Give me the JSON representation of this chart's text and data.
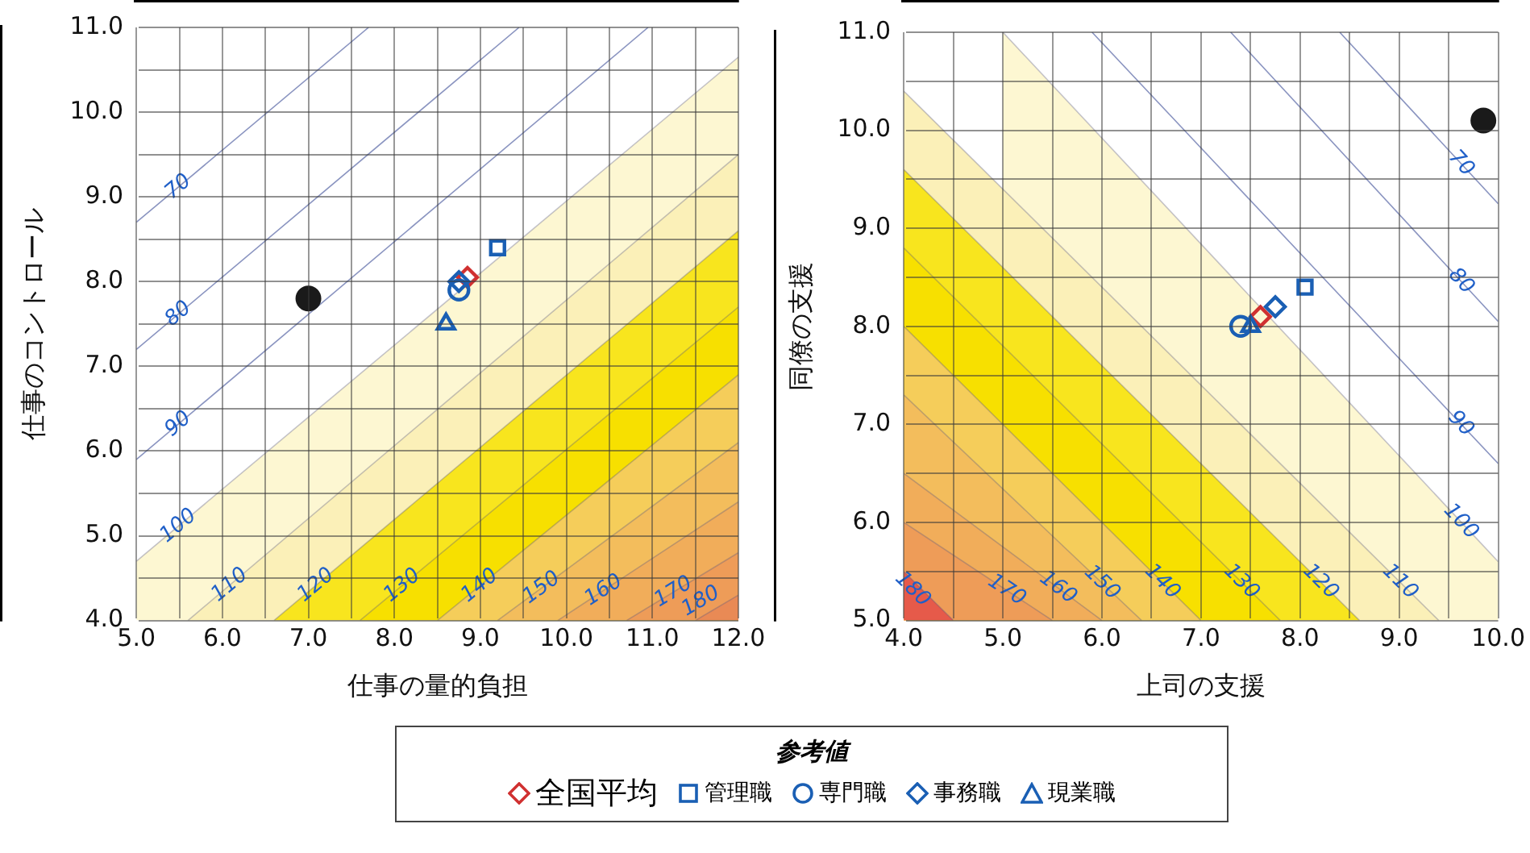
{
  "chart_data": [
    {
      "type": "scatter",
      "xlabel": "仕事の量的負担",
      "ylabel": "仕事のコントロール",
      "xlim": [
        5,
        12
      ],
      "ylim": [
        4,
        11
      ],
      "xticks": [
        {
          "value": 5,
          "label": "5.0"
        },
        {
          "value": 5.5,
          "label": null
        },
        {
          "value": 6,
          "label": "6.0"
        },
        {
          "value": 6.5,
          "label": null
        },
        {
          "value": 7,
          "label": "7.0"
        },
        {
          "value": 7.5,
          "label": null
        },
        {
          "value": 8,
          "label": "8.0"
        },
        {
          "value": 8.5,
          "label": null
        },
        {
          "value": 9,
          "label": "9.0"
        },
        {
          "value": 9.5,
          "label": null
        },
        {
          "value": 10,
          "label": "10.0"
        },
        {
          "value": 10.5,
          "label": null
        },
        {
          "value": 11,
          "label": "11.0"
        },
        {
          "value": 11.5,
          "label": null
        },
        {
          "value": 12,
          "label": "12.0"
        }
      ],
      "yticks": [
        {
          "value": 4,
          "label": "4.0"
        },
        {
          "value": 4.5,
          "label": null
        },
        {
          "value": 5,
          "label": "5.0"
        },
        {
          "value": 5.5,
          "label": null
        },
        {
          "value": 6,
          "label": "6.0"
        },
        {
          "value": 6.5,
          "label": null
        },
        {
          "value": 7,
          "label": "7.0"
        },
        {
          "value": 7.5,
          "label": null
        },
        {
          "value": 8,
          "label": "8.0"
        },
        {
          "value": 8.5,
          "label": null
        },
        {
          "value": 9,
          "label": "9.0"
        },
        {
          "value": 9.5,
          "label": null
        },
        {
          "value": 10,
          "label": "10.0"
        },
        {
          "value": 10.5,
          "label": null
        },
        {
          "value": 11,
          "label": "11.0"
        }
      ],
      "grid": true,
      "legend": "bottom",
      "legend_title": "参考値",
      "series": [
        {
          "type": "line",
          "name": "70",
          "color": "#8a94c0",
          "x": [
            5,
            7.7
          ],
          "values": [
            8.7,
            11
          ]
        },
        {
          "type": "line",
          "name": "80",
          "color": "#8a94c0",
          "x": [
            5,
            9.45
          ],
          "values": [
            7.2,
            11
          ]
        },
        {
          "type": "line",
          "name": "90",
          "color": "#8a94c0",
          "x": [
            5,
            10.95
          ],
          "values": [
            5.9,
            11
          ]
        },
        {
          "type": "area",
          "name": "100",
          "color": "#fdf7d2",
          "x": [
            5,
            12
          ],
          "values": [
            4.7,
            10.65
          ]
        },
        {
          "type": "area",
          "name": "110",
          "color": "#fbf0b8",
          "x": [
            5.6,
            12
          ],
          "values": [
            4,
            9.5
          ]
        },
        {
          "type": "area",
          "name": "120",
          "color": "#f8e51e",
          "x": [
            6.6,
            12
          ],
          "values": [
            4,
            8.6
          ]
        },
        {
          "type": "area",
          "name": "130",
          "color": "#f7e000",
          "x": [
            7.6,
            12
          ],
          "values": [
            4,
            7.7
          ]
        },
        {
          "type": "area",
          "name": "140",
          "color": "#f5cd5a",
          "x": [
            8.5,
            12
          ],
          "values": [
            4,
            6.9
          ]
        },
        {
          "type": "area",
          "name": "150",
          "color": "#f3bd5c",
          "x": [
            9.2,
            12
          ],
          "values": [
            4,
            6.1
          ]
        },
        {
          "type": "area",
          "name": "160",
          "color": "#f1ad5a",
          "x": [
            9.9,
            12
          ],
          "values": [
            4,
            5.4
          ]
        },
        {
          "type": "area",
          "name": "170",
          "color": "#ee9c58",
          "x": [
            10.7,
            12
          ],
          "values": [
            4,
            4.8
          ]
        },
        {
          "type": "area",
          "name": "180",
          "color": "#e98a55",
          "x": [
            11.5,
            12
          ],
          "values": [
            4,
            4.3
          ]
        },
        {
          "type": "scatter",
          "color": "#1a1a1a",
          "marker": "circle",
          "x": [
            7.0
          ],
          "values": [
            7.8
          ]
        },
        {
          "type": "scatter",
          "name": "全国平均",
          "color": "#d03030",
          "marker": "diamond",
          "x": [
            8.85
          ],
          "values": [
            8.05
          ]
        },
        {
          "type": "scatter",
          "name": "管理職",
          "color": "#1a5fb4",
          "marker": "square",
          "x": [
            9.2
          ],
          "values": [
            8.4
          ]
        },
        {
          "type": "scatter",
          "name": "専門職",
          "color": "#1a5fb4",
          "marker": "circle",
          "x": [
            8.75
          ],
          "values": [
            7.9
          ]
        },
        {
          "type": "scatter",
          "name": "事務職",
          "color": "#1a5fb4",
          "marker": "diamond",
          "x": [
            8.75
          ],
          "values": [
            8.0
          ]
        },
        {
          "type": "scatter",
          "name": "現業職",
          "color": "#1a5fb4",
          "marker": "triangle",
          "x": [
            8.6
          ],
          "values": [
            7.5
          ]
        }
      ]
    },
    {
      "type": "scatter",
      "xlabel": "上司の支援",
      "ylabel": "同僚の支援",
      "xlim": [
        4,
        10
      ],
      "ylim": [
        5,
        11
      ],
      "xticks": [
        {
          "value": 4,
          "label": "4.0"
        },
        {
          "value": 4.5,
          "label": null
        },
        {
          "value": 5,
          "label": "5.0"
        },
        {
          "value": 5.5,
          "label": null
        },
        {
          "value": 6,
          "label": "6.0"
        },
        {
          "value": 6.5,
          "label": null
        },
        {
          "value": 7,
          "label": "7.0"
        },
        {
          "value": 7.5,
          "label": null
        },
        {
          "value": 8,
          "label": "8.0"
        },
        {
          "value": 8.5,
          "label": null
        },
        {
          "value": 9,
          "label": "9.0"
        },
        {
          "value": 9.5,
          "label": null
        },
        {
          "value": 10,
          "label": "10.0"
        }
      ],
      "yticks": [
        {
          "value": 5,
          "label": "5.0"
        },
        {
          "value": 5.5,
          "label": null
        },
        {
          "value": 6,
          "label": "6.0"
        },
        {
          "value": 6.5,
          "label": null
        },
        {
          "value": 7,
          "label": "7.0"
        },
        {
          "value": 7.5,
          "label": null
        },
        {
          "value": 8,
          "label": "8.0"
        },
        {
          "value": 8.5,
          "label": null
        },
        {
          "value": 9,
          "label": "9.0"
        },
        {
          "value": 9.5,
          "label": null
        },
        {
          "value": 10,
          "label": "10.0"
        },
        {
          "value": 10.5,
          "label": null
        },
        {
          "value": 11,
          "label": "11.0"
        }
      ],
      "grid": true,
      "series": [
        {
          "type": "line",
          "name": "70",
          "color": "#8a94c0",
          "x": [
            10,
            8.4
          ],
          "values": [
            9.25,
            11
          ]
        },
        {
          "type": "line",
          "name": "80",
          "color": "#8a94c0",
          "x": [
            10,
            7.3
          ],
          "values": [
            8.05,
            11
          ]
        },
        {
          "type": "line",
          "name": "90",
          "color": "#8a94c0",
          "x": [
            10,
            5.9
          ],
          "values": [
            6.6,
            11
          ]
        },
        {
          "type": "area",
          "name": "100",
          "color": "#fdf7d2",
          "x": [
            10,
            5.0
          ],
          "values": [
            5.6,
            11
          ]
        },
        {
          "type": "area",
          "name": "110",
          "color": "#fbf0b8",
          "x": [
            9.4,
            4
          ],
          "values": [
            5,
            10.4
          ]
        },
        {
          "type": "area",
          "name": "120",
          "color": "#f8e51e",
          "x": [
            8.6,
            4
          ],
          "values": [
            5,
            9.6
          ]
        },
        {
          "type": "area",
          "name": "130",
          "color": "#f7e000",
          "x": [
            7.8,
            4
          ],
          "values": [
            5,
            8.8
          ]
        },
        {
          "type": "area",
          "name": "140",
          "color": "#f5cd5a",
          "x": [
            7.0,
            4
          ],
          "values": [
            5,
            8.0
          ]
        },
        {
          "type": "area",
          "name": "150",
          "color": "#f3bd5c",
          "x": [
            6.4,
            4
          ],
          "values": [
            5,
            7.3
          ]
        },
        {
          "type": "area",
          "name": "160",
          "color": "#f1ad5a",
          "x": [
            6.0,
            4
          ],
          "values": [
            5,
            6.5
          ]
        },
        {
          "type": "area",
          "name": "170",
          "color": "#ee9c58",
          "x": [
            5.5,
            4
          ],
          "values": [
            5,
            6.0
          ]
        },
        {
          "type": "area",
          "name": "180",
          "color": "#e65a4a",
          "x": [
            4.5,
            4
          ],
          "values": [
            5,
            5.5
          ]
        },
        {
          "type": "scatter",
          "color": "#1a1a1a",
          "marker": "circle",
          "x": [
            9.85
          ],
          "values": [
            10.1
          ]
        },
        {
          "type": "scatter",
          "color": "#d03030",
          "marker": "diamond",
          "x": [
            7.6
          ],
          "values": [
            8.1
          ]
        },
        {
          "type": "scatter",
          "color": "#1a5fb4",
          "marker": "square",
          "x": [
            8.05
          ],
          "values": [
            8.4
          ]
        },
        {
          "type": "scatter",
          "color": "#1a5fb4",
          "marker": "circle",
          "x": [
            7.4
          ],
          "values": [
            8.0
          ]
        },
        {
          "type": "scatter",
          "color": "#1a5fb4",
          "marker": "diamond",
          "x": [
            7.75
          ],
          "values": [
            8.2
          ]
        },
        {
          "type": "scatter",
          "color": "#1a5fb4",
          "marker": "triangle",
          "x": [
            7.5
          ],
          "values": [
            8.0
          ]
        }
      ]
    }
  ]
}
